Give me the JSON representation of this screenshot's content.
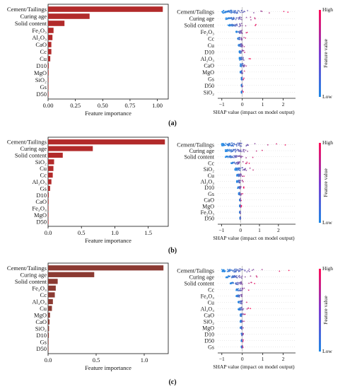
{
  "colors": {
    "bar": "#b22a2a",
    "bar_c": "#8b3a32",
    "cmap_low": "#1e88e5",
    "cmap_high": "#ff0d57",
    "axis": "#111111",
    "zero_line": "#999999"
  },
  "colorbar": {
    "high_label": "High",
    "low_label": "Low",
    "title": "Feature value"
  },
  "chart_data": [
    {
      "panel": "(a)",
      "type": "bar",
      "orientation": "horizontal",
      "xlabel": "Feature importance",
      "xlim": [
        0,
        1.1
      ],
      "xticks": [
        "0.00",
        "0.25",
        "0.50",
        "0.75",
        "1.00"
      ],
      "categories": [
        "Cement/Tailings",
        "Curing age",
        "Solid content",
        "Fe₂O₃",
        "Al₂O₃",
        "CaO",
        "Cc",
        "Cu",
        "D10",
        "MgO",
        "SiO₂",
        "Gs",
        "D50"
      ],
      "values": [
        1.05,
        0.38,
        0.15,
        0.05,
        0.04,
        0.03,
        0.03,
        0.02,
        0.006,
        0.005,
        0.004,
        0.003,
        0.002
      ]
    },
    {
      "panel": "(a)",
      "type": "scatter",
      "subtype": "shap_beeswarm",
      "xlabel": "SHAP value (impact on model output)",
      "xlim": [
        -1.2,
        2.6
      ],
      "xticks": [
        "−1",
        "0",
        "1",
        "2"
      ],
      "features": [
        "Cement/Tailings",
        "Curing age",
        "Solid content",
        "Fe₂O₃",
        "Cc",
        "Cu",
        "D10",
        "Al₂O₃",
        "CaO",
        "MgO",
        "Gs",
        "D50",
        "SiO₂"
      ],
      "shap_range": [
        [
          -1.0,
          2.4
        ],
        [
          -0.8,
          1.1
        ],
        [
          -0.7,
          0.8
        ],
        [
          -0.3,
          0.3
        ],
        [
          -0.25,
          0.25
        ],
        [
          -0.2,
          0.25
        ],
        [
          -0.15,
          0.2
        ],
        [
          -0.15,
          0.4
        ],
        [
          -0.1,
          0.35
        ],
        [
          -0.1,
          0.15
        ],
        [
          -0.05,
          0.1
        ],
        [
          -0.05,
          0.05
        ],
        [
          -0.05,
          0.05
        ]
      ]
    },
    {
      "panel": "(b)",
      "type": "bar",
      "orientation": "horizontal",
      "xlabel": "Feature importance",
      "xlim": [
        0,
        1.8
      ],
      "xticks": [
        "0.0",
        "0.5",
        "1.0",
        "1.5"
      ],
      "categories": [
        "Cement/Tailings",
        "Curing age",
        "Solid content",
        "SiO₂",
        "Cu",
        "Cc",
        "Al₂O₃",
        "Gs",
        "D10",
        "CaO",
        "Fe₂O₃",
        "MgO",
        "D50"
      ],
      "values": [
        1.75,
        0.67,
        0.22,
        0.09,
        0.08,
        0.07,
        0.05,
        0.03,
        0.01,
        0.008,
        0.006,
        0.004,
        0.002
      ]
    },
    {
      "panel": "(b)",
      "type": "scatter",
      "subtype": "shap_beeswarm",
      "xlabel": "SHAP value (impact on model output)",
      "xlim": [
        -1.2,
        2.9
      ],
      "xticks": [
        "−1",
        "0",
        "1",
        "2"
      ],
      "features": [
        "Cement/Tailings",
        "Curing age",
        "Solid content",
        "Cc",
        "SiO₂",
        "Cu",
        "Al₂O₃",
        "D10",
        "Gs",
        "CaO",
        "MgO",
        "Fe₂O₃",
        "D50"
      ],
      "shap_range": [
        [
          -1.0,
          2.6
        ],
        [
          -0.8,
          1.5
        ],
        [
          -0.8,
          1.0
        ],
        [
          -0.5,
          0.5
        ],
        [
          -0.3,
          1.0
        ],
        [
          -0.2,
          0.3
        ],
        [
          -0.2,
          0.3
        ],
        [
          -0.15,
          0.2
        ],
        [
          -0.1,
          0.15
        ],
        [
          -0.05,
          0.05
        ],
        [
          -0.05,
          0.05
        ],
        [
          -0.05,
          0.05
        ],
        [
          -0.03,
          0.03
        ]
      ]
    },
    {
      "panel": "(c)",
      "type": "bar",
      "orientation": "horizontal",
      "xlabel": "Feature importance",
      "xlim": [
        0,
        1.25
      ],
      "xticks": [
        "0.0",
        "0.5",
        "1.0"
      ],
      "categories": [
        "Cement/Tailings",
        "Curing age",
        "Solid content",
        "Fe₂O₃",
        "Cc",
        "Al₂O₃",
        "Cu",
        "MgO",
        "CaO",
        "SiO₂",
        "D10",
        "Gs",
        "D50"
      ],
      "values": [
        1.2,
        0.48,
        0.1,
        0.08,
        0.07,
        0.05,
        0.04,
        0.02,
        0.015,
        0.01,
        0.008,
        0.005,
        0.003
      ]
    },
    {
      "panel": "(c)",
      "type": "scatter",
      "subtype": "shap_beeswarm",
      "xlabel": "SHAP value (impact on model output)",
      "xlim": [
        -1.2,
        2.6
      ],
      "xticks": [
        "−1",
        "0",
        "1",
        "2"
      ],
      "features": [
        "Cement/Tailings",
        "Curing age",
        "Solid content",
        "Cc",
        "Fe₂O₃",
        "Cu",
        "Al₂O₃",
        "CaO",
        "SiO₂",
        "MgO",
        "D10",
        "D50",
        "Gs"
      ],
      "shap_range": [
        [
          -1.0,
          2.3
        ],
        [
          -0.8,
          1.1
        ],
        [
          -0.6,
          0.7
        ],
        [
          -0.3,
          0.4
        ],
        [
          -0.3,
          0.3
        ],
        [
          -0.2,
          0.3
        ],
        [
          -0.2,
          0.4
        ],
        [
          -0.1,
          0.2
        ],
        [
          -0.1,
          0.15
        ],
        [
          -0.1,
          0.15
        ],
        [
          -0.05,
          0.1
        ],
        [
          -0.05,
          0.05
        ],
        [
          -0.05,
          0.05
        ]
      ]
    }
  ]
}
